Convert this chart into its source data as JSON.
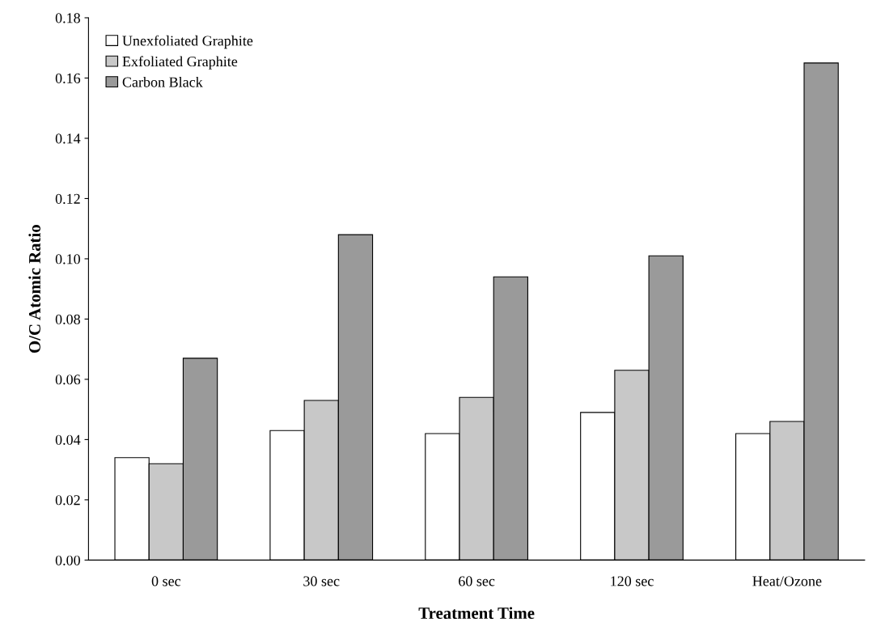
{
  "chart_data": {
    "type": "bar",
    "xlabel": "Treatment Time",
    "ylabel": "O/C Atomic Ratio",
    "categories": [
      "0 sec",
      "30 sec",
      "60 sec",
      "120 sec",
      "Heat/Ozone"
    ],
    "series": [
      {
        "name": "Unexfoliated Graphite",
        "color": "#ffffff",
        "values": [
          0.034,
          0.043,
          0.042,
          0.049,
          0.042
        ]
      },
      {
        "name": "Exfoliated Graphite",
        "color": "#c8c8c8",
        "values": [
          0.032,
          0.053,
          0.054,
          0.063,
          0.046
        ]
      },
      {
        "name": "Carbon Black",
        "color": "#9a9a9a",
        "values": [
          0.067,
          0.108,
          0.094,
          0.101,
          0.165
        ]
      }
    ],
    "ylim": [
      0,
      0.18
    ],
    "yticks": [
      {
        "value": 0,
        "label": "0.00"
      },
      {
        "value": 0.02,
        "label": "0.02"
      },
      {
        "value": 0.04,
        "label": "0.04"
      },
      {
        "value": 0.06,
        "label": "0.06"
      },
      {
        "value": 0.08,
        "label": "0.08"
      },
      {
        "value": 0.1,
        "label": "0.10"
      },
      {
        "value": 0.12,
        "label": "0.12"
      },
      {
        "value": 0.14,
        "label": "0.14"
      },
      {
        "value": 0.16,
        "label": "0.16"
      },
      {
        "value": 0.18,
        "label": "0.18"
      }
    ],
    "legend": "top left",
    "grid": false
  }
}
